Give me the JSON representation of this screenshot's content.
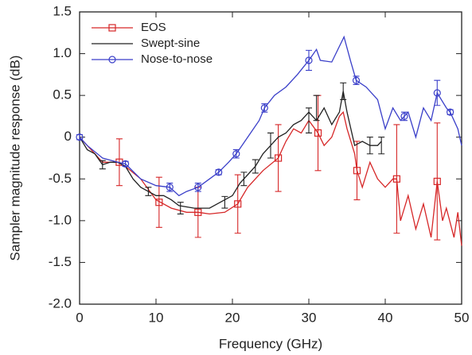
{
  "chart_data": {
    "type": "line",
    "xlabel": "Frequency (GHz)",
    "ylabel": "Sampler magnitude response (dB)",
    "xlim": [
      0,
      50
    ],
    "xticks": [
      0,
      10,
      20,
      30,
      40,
      50
    ],
    "ylim": [
      -2,
      1.5
    ],
    "yticks": [
      1.5,
      {
        "value": 1,
        "label": "1.0"
      },
      0.5,
      0,
      -0.5,
      {
        "value": -1,
        "label": "-1.0"
      },
      -1.5,
      {
        "value": -2,
        "label": "-2.0"
      }
    ],
    "legend": "upper left",
    "series": [
      {
        "name": "EOS",
        "color": "#d62728",
        "marker": "square",
        "x": [
          0,
          1,
          2,
          3,
          4,
          5,
          6,
          8,
          10,
          12,
          14,
          15.5,
          17,
          19,
          20.7,
          22,
          24,
          26,
          27,
          28,
          29,
          30,
          31.2,
          32,
          33,
          34,
          34.5,
          35,
          36,
          36.3,
          37,
          38,
          39,
          40,
          41,
          41.5,
          42,
          43,
          44,
          45,
          46,
          46.8,
          47.5,
          48,
          49,
          49.5,
          50
        ],
        "values": [
          0,
          -0.1,
          -0.2,
          -0.3,
          -0.3,
          -0.3,
          -0.35,
          -0.5,
          -0.75,
          -0.85,
          -0.9,
          -0.9,
          -0.92,
          -0.9,
          -0.8,
          -0.6,
          -0.4,
          -0.25,
          -0.05,
          0.1,
          0.05,
          0.2,
          0.05,
          -0.1,
          0,
          0.25,
          0.3,
          0.1,
          -0.2,
          -0.4,
          -0.6,
          -0.3,
          -0.5,
          -0.6,
          -0.5,
          -0.5,
          -1,
          -0.7,
          -1.1,
          -0.8,
          -1.2,
          -0.53,
          -1,
          -0.85,
          -1.2,
          -0.9,
          -1.3
        ],
        "points": {
          "x": [
            5.2,
            10.4,
            15.5,
            20.7,
            26,
            31.2,
            36.3,
            41.5,
            46.8
          ],
          "values": [
            -0.3,
            -0.78,
            -0.9,
            -0.8,
            -0.25,
            0.05,
            -0.4,
            -0.5,
            -0.53
          ],
          "errors": [
            0.28,
            0.3,
            0.3,
            0.35,
            0.4,
            0.45,
            0.35,
            0.65,
            0.7
          ]
        }
      },
      {
        "name": "Swept-sine",
        "color": "#222222",
        "x": [
          0,
          1,
          2,
          3,
          4,
          5,
          6,
          7,
          8,
          10,
          11,
          12,
          13,
          15,
          17,
          18,
          19,
          20,
          21,
          22,
          23,
          24,
          25,
          26,
          27,
          28,
          29,
          30,
          31,
          32,
          33,
          34,
          34.5,
          35,
          36,
          37,
          38,
          39,
          39.5
        ],
        "values": [
          0,
          -0.15,
          -0.2,
          -0.33,
          -0.3,
          -0.3,
          -0.35,
          -0.5,
          -0.6,
          -0.7,
          -0.7,
          -0.75,
          -0.82,
          -0.85,
          -0.85,
          -0.8,
          -0.75,
          -0.7,
          -0.55,
          -0.45,
          -0.35,
          -0.2,
          -0.1,
          0,
          0.05,
          0.15,
          0.2,
          0.3,
          0.2,
          0.35,
          0.15,
          0.3,
          0.55,
          0.3,
          -0.1,
          -0.05,
          -0.1,
          -0.1,
          -0.05
        ],
        "points": {
          "x": [
            3,
            9,
            13.2,
            19,
            21.5,
            23,
            25,
            30,
            31,
            34.5,
            38,
            39.5
          ],
          "values": [
            -0.33,
            -0.65,
            -0.85,
            -0.78,
            -0.5,
            -0.35,
            -0.1,
            0.2,
            0.35,
            0.55,
            -0.1,
            -0.1
          ],
          "errors": [
            0.05,
            0.05,
            0.07,
            0.07,
            0.08,
            0.08,
            0.15,
            0.15,
            0.15,
            0.1,
            0.1,
            0.1
          ]
        }
      },
      {
        "name": "Nose-to-nose",
        "color": "#3a3fc9",
        "marker": "circle",
        "x": [
          0,
          1,
          3,
          5,
          6,
          8,
          10,
          11.8,
          13,
          14,
          15.5,
          17,
          18.2,
          19.5,
          20.5,
          22,
          23.5,
          24.2,
          25.5,
          27,
          28.5,
          30,
          31,
          31.5,
          33,
          34.6,
          35.5,
          36.2,
          37.5,
          39,
          40,
          41,
          42,
          42.5,
          43,
          44,
          45,
          46,
          46.8,
          48,
          48.5,
          49.5,
          50
        ],
        "values": [
          0,
          -0.1,
          -0.25,
          -0.3,
          -0.32,
          -0.5,
          -0.58,
          -0.6,
          -0.7,
          -0.65,
          -0.6,
          -0.5,
          -0.42,
          -0.3,
          -0.2,
          0,
          0.2,
          0.35,
          0.5,
          0.6,
          0.75,
          0.92,
          1.05,
          0.92,
          0.9,
          1.2,
          0.9,
          0.68,
          0.6,
          0.45,
          0.1,
          0.35,
          0.2,
          0.25,
          0.3,
          0,
          0.35,
          0.2,
          0.53,
          0.35,
          0.3,
          0.1,
          -0.1
        ],
        "points": {
          "x": [
            0,
            6,
            11.8,
            15.5,
            18.2,
            20.5,
            24.2,
            30,
            36.2,
            42.5,
            46.8,
            48.5
          ],
          "values": [
            0,
            -0.32,
            -0.6,
            -0.6,
            -0.42,
            -0.2,
            0.35,
            0.92,
            0.68,
            0.25,
            0.53,
            0.3
          ],
          "errors": [
            0.03,
            0.03,
            0.05,
            0.05,
            0.03,
            0.05,
            0.05,
            0.12,
            0.05,
            0.05,
            0.15,
            0.03
          ]
        }
      }
    ]
  }
}
